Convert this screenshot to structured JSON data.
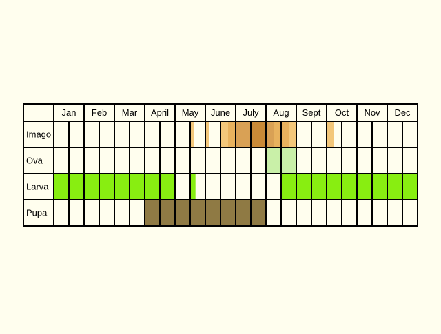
{
  "chart_data": {
    "type": "table",
    "title": "",
    "months": [
      "Jan",
      "Feb",
      "Mar",
      "April",
      "May",
      "June",
      "July",
      "Aug",
      "Sept",
      "Oct",
      "Nov",
      "Dec"
    ],
    "cells_per_month": 2,
    "stages": [
      {
        "label": "Imago",
        "spans": [
          {
            "from": 9.0,
            "to": 9.25,
            "color": "#f3c77a"
          },
          {
            "from": 10.0,
            "to": 10.25,
            "color": "#f3c77a"
          },
          {
            "from": 11.0,
            "to": 11.5,
            "color": "#f3c77a"
          },
          {
            "from": 11.5,
            "to": 12.0,
            "color": "#e8b25e"
          },
          {
            "from": 12.0,
            "to": 13.0,
            "color": "#d9a155"
          },
          {
            "from": 13.0,
            "to": 14.0,
            "color": "#c98a37"
          },
          {
            "from": 14.0,
            "to": 14.5,
            "color": "#d9a155"
          },
          {
            "from": 14.5,
            "to": 15.5,
            "color": "#e8b25e"
          },
          {
            "from": 15.5,
            "to": 16.0,
            "color": "#f3c77a"
          },
          {
            "from": 18.0,
            "to": 18.5,
            "color": "#f3c77a"
          }
        ]
      },
      {
        "label": "Ova",
        "spans": [
          {
            "from": 14.0,
            "to": 16.0,
            "color": "#c9f0a8"
          }
        ]
      },
      {
        "label": "Larva",
        "spans": [
          {
            "from": 0.0,
            "to": 8.0,
            "color": "#88ee11"
          },
          {
            "from": 9.0,
            "to": 9.35,
            "color": "#88ee11"
          },
          {
            "from": 15.0,
            "to": 24.0,
            "color": "#88ee11"
          }
        ]
      },
      {
        "label": "Pupa",
        "spans": [
          {
            "from": 6.0,
            "to": 14.0,
            "color": "#8f7a44"
          }
        ]
      }
    ]
  }
}
